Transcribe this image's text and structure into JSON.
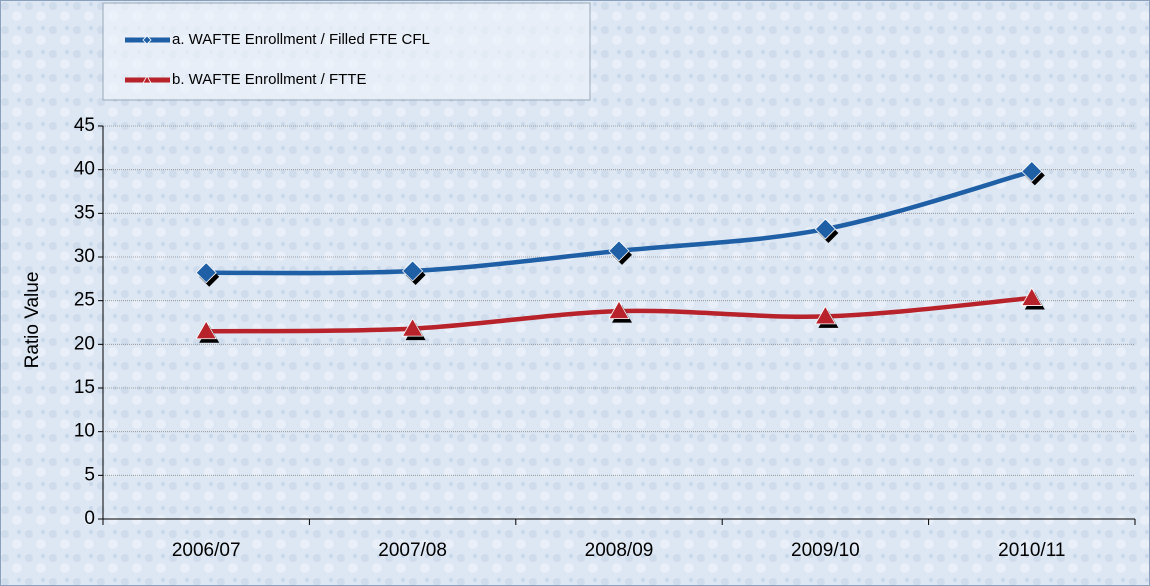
{
  "chart_data": {
    "type": "line",
    "ylabel": "Ratio Value",
    "categories": [
      "2006/07",
      "2007/08",
      "2008/09",
      "2009/10",
      "2010/11"
    ],
    "series": [
      {
        "name": "a. WAFTE Enrollment / Filled FTE CFL",
        "color": "#1f5fa6",
        "marker": "diamond",
        "values": [
          28.2,
          28.4,
          30.7,
          33.2,
          39.8
        ]
      },
      {
        "name": "b. WAFTE Enrollment / FTTE",
        "color": "#b8222b",
        "marker": "triangle",
        "values": [
          21.5,
          21.8,
          23.8,
          23.2,
          25.3
        ]
      }
    ],
    "ylim": [
      0,
      45
    ],
    "yticks": [
      0,
      5,
      10,
      15,
      20,
      25,
      30,
      35,
      40,
      45
    ],
    "grid": true,
    "smooth": true
  }
}
